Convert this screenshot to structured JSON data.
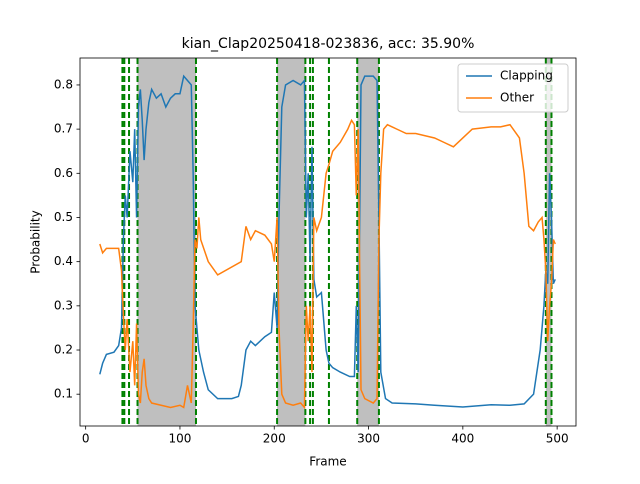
{
  "chart_data": {
    "type": "line",
    "title": "kian_Clap20250418-023836,  acc: 35.90%",
    "x_label": "Frame",
    "y_label": "Probability",
    "xlim": [
      -6,
      520
    ],
    "ylim": [
      0.028,
      0.861
    ],
    "xticks": [
      0,
      100,
      200,
      300,
      400,
      500
    ],
    "yticks": [
      0.1,
      0.2,
      0.3,
      0.4,
      0.5,
      0.6,
      0.7,
      0.8
    ],
    "legend_position": "upper right",
    "shade_color": "#bfbfbf",
    "vline_color": "#008000",
    "shaded_spans": [
      [
        55,
        117
      ],
      [
        203,
        233
      ],
      [
        288,
        311
      ],
      [
        488,
        494
      ]
    ],
    "vlines": [
      39,
      41,
      46,
      55,
      117,
      203,
      233,
      238,
      241,
      258,
      288,
      311,
      488,
      494
    ],
    "series": [
      {
        "name": "Clapping",
        "color": "#1f77b4",
        "x": [
          15,
          18,
          22,
          30,
          35,
          38,
          40,
          42,
          44,
          47,
          50,
          52,
          54,
          56,
          58,
          60,
          62,
          64,
          67,
          70,
          75,
          80,
          85,
          90,
          95,
          100,
          104,
          108,
          112,
          114,
          116,
          118,
          120,
          125,
          130,
          140,
          155,
          162,
          165,
          170,
          175,
          180,
          190,
          197,
          200,
          203,
          205,
          208,
          212,
          220,
          228,
          232,
          234,
          236,
          238,
          240,
          242,
          245,
          250,
          255,
          258,
          262,
          270,
          280,
          285,
          287,
          289,
          292,
          296,
          305,
          309,
          311,
          313,
          318,
          325,
          350,
          370,
          400,
          430,
          450,
          465,
          475,
          482,
          486,
          488,
          490,
          492,
          494,
          496,
          498
        ],
        "values": [
          0.145,
          0.17,
          0.19,
          0.195,
          0.21,
          0.25,
          0.45,
          0.55,
          0.5,
          0.65,
          0.58,
          0.7,
          0.5,
          0.75,
          0.79,
          0.72,
          0.63,
          0.7,
          0.76,
          0.79,
          0.77,
          0.78,
          0.75,
          0.77,
          0.78,
          0.78,
          0.82,
          0.81,
          0.8,
          0.6,
          0.3,
          0.25,
          0.2,
          0.15,
          0.11,
          0.09,
          0.09,
          0.095,
          0.12,
          0.2,
          0.22,
          0.21,
          0.23,
          0.24,
          0.33,
          0.25,
          0.5,
          0.75,
          0.8,
          0.81,
          0.8,
          0.81,
          0.5,
          0.6,
          0.4,
          0.66,
          0.36,
          0.32,
          0.33,
          0.2,
          0.17,
          0.16,
          0.15,
          0.14,
          0.14,
          0.3,
          0.15,
          0.8,
          0.82,
          0.82,
          0.81,
          0.5,
          0.15,
          0.09,
          0.08,
          0.078,
          0.075,
          0.071,
          0.076,
          0.075,
          0.078,
          0.1,
          0.2,
          0.3,
          0.38,
          0.35,
          0.6,
          0.5,
          0.35,
          0.36
        ]
      },
      {
        "name": "Other",
        "color": "#ff7f0e",
        "x": [
          15,
          18,
          22,
          30,
          35,
          38,
          40,
          42,
          44,
          47,
          50,
          52,
          54,
          56,
          58,
          60,
          62,
          64,
          67,
          70,
          80,
          90,
          100,
          104,
          108,
          112,
          114,
          116,
          118,
          120,
          122,
          130,
          140,
          165,
          170,
          175,
          180,
          190,
          197,
          200,
          203,
          205,
          208,
          212,
          220,
          228,
          232,
          234,
          236,
          238,
          240,
          242,
          245,
          250,
          255,
          258,
          262,
          270,
          278,
          282,
          285,
          287,
          289,
          292,
          296,
          305,
          309,
          311,
          313,
          316,
          320,
          330,
          340,
          350,
          370,
          380,
          390,
          400,
          410,
          430,
          440,
          450,
          460,
          465,
          470,
          475,
          480,
          484,
          486,
          488,
          490,
          492,
          494,
          496,
          498
        ],
        "values": [
          0.44,
          0.42,
          0.43,
          0.43,
          0.43,
          0.38,
          0.28,
          0.2,
          0.27,
          0.15,
          0.22,
          0.12,
          0.26,
          0.1,
          0.08,
          0.15,
          0.18,
          0.12,
          0.09,
          0.08,
          0.075,
          0.07,
          0.075,
          0.07,
          0.12,
          0.08,
          0.25,
          0.45,
          0.43,
          0.5,
          0.45,
          0.4,
          0.37,
          0.4,
          0.48,
          0.45,
          0.47,
          0.46,
          0.44,
          0.4,
          0.5,
          0.25,
          0.1,
          0.08,
          0.075,
          0.08,
          0.07,
          0.3,
          0.22,
          0.3,
          0.15,
          0.5,
          0.47,
          0.5,
          0.6,
          0.62,
          0.65,
          0.67,
          0.7,
          0.72,
          0.71,
          0.55,
          0.7,
          0.11,
          0.09,
          0.08,
          0.09,
          0.45,
          0.6,
          0.7,
          0.71,
          0.7,
          0.69,
          0.69,
          0.68,
          0.67,
          0.66,
          0.68,
          0.7,
          0.705,
          0.705,
          0.71,
          0.68,
          0.6,
          0.48,
          0.47,
          0.49,
          0.5,
          0.45,
          0.38,
          0.22,
          0.3,
          0.35,
          0.45,
          0.44
        ]
      }
    ]
  }
}
